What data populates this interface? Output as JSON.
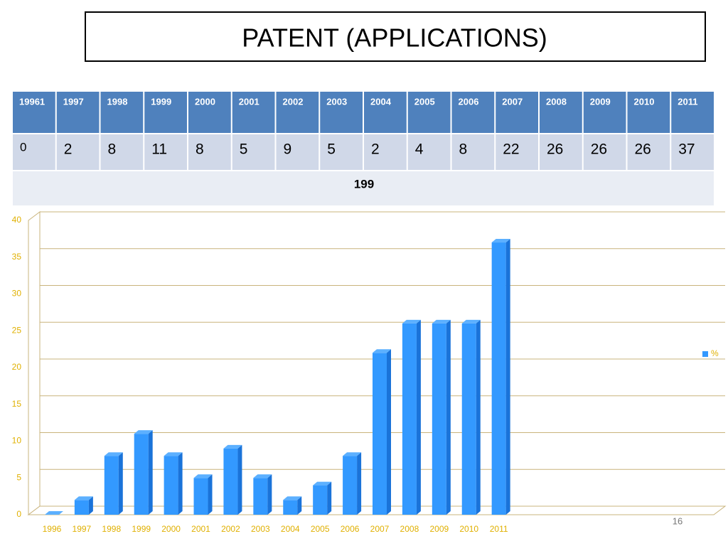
{
  "title": "PATENT (APPLICATIONS)",
  "table": {
    "header": [
      "19961",
      "1997",
      "1998",
      "1999",
      "2000",
      "2001",
      "2002",
      "2003",
      "2004",
      "2005",
      "2006",
      "2007",
      "2008",
      "2009",
      "2010",
      "2011"
    ],
    "values": [
      0,
      2,
      8,
      11,
      8,
      5,
      9,
      5,
      2,
      4,
      8,
      22,
      26,
      26,
      26,
      37
    ],
    "total": 199
  },
  "page_number": "16",
  "chart_data": {
    "type": "bar",
    "categories": [
      "1996",
      "1997",
      "1998",
      "1999",
      "2000",
      "2001",
      "2002",
      "2003",
      "2004",
      "2005",
      "2006",
      "2007",
      "2008",
      "2009",
      "2010",
      "2011",
      null,
      null,
      null,
      null,
      null,
      null,
      null
    ],
    "series": [
      {
        "name": "%",
        "color": "#3399ff",
        "values": [
          0,
          2,
          8,
          11,
          8,
          5,
          9,
          5,
          2,
          4,
          8,
          22,
          26,
          26,
          26,
          37,
          null,
          null,
          null,
          null,
          null,
          null,
          null
        ]
      }
    ],
    "ylim": [
      0,
      40
    ],
    "yticks": [
      0,
      5,
      10,
      15,
      20,
      25,
      30,
      35,
      40
    ],
    "grid": true,
    "legend": "right"
  }
}
